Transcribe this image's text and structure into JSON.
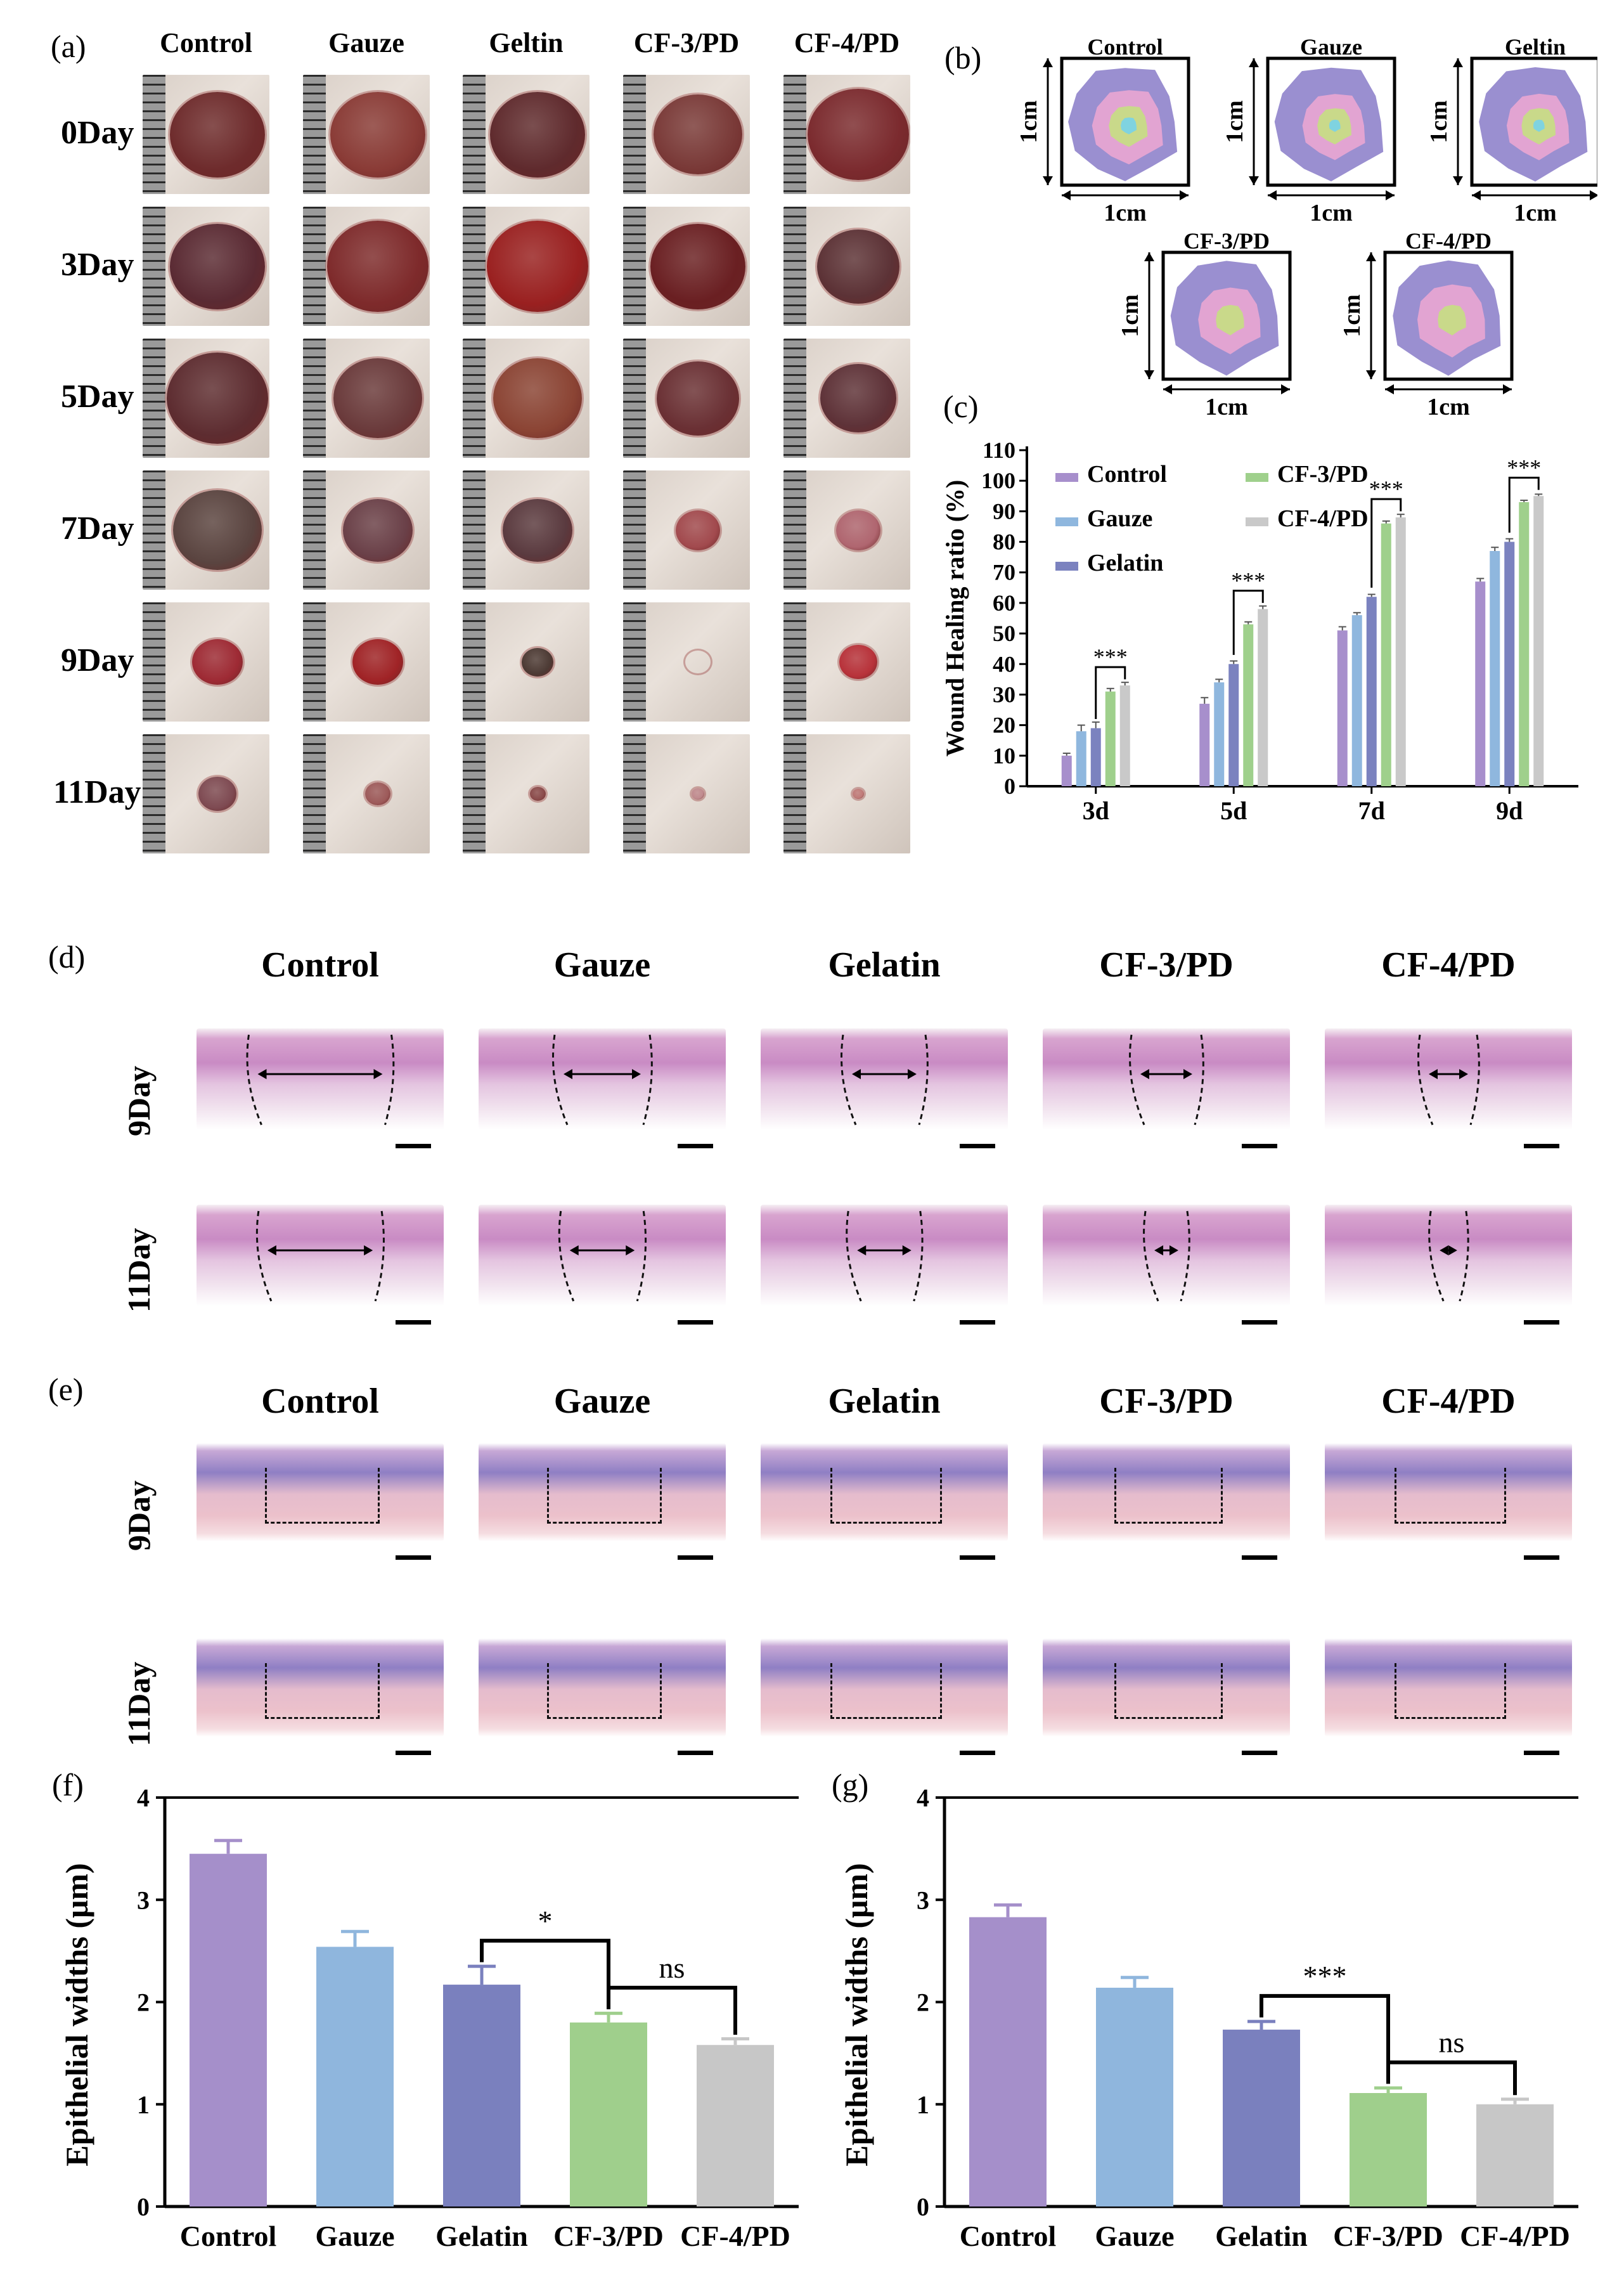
{
  "panel_a": {
    "letter": "(a)",
    "columns": [
      "Control",
      "Gauze",
      "Geltin",
      "CF-3/PD",
      "CF-4/PD"
    ],
    "rows": [
      "0Day",
      "3Day",
      "5Day",
      "7Day",
      "9Day",
      "11Day"
    ]
  },
  "panel_b": {
    "letter": "(b)",
    "maps": [
      "Control",
      "Gauze",
      "Geltin",
      "CF-3/PD",
      "CF-4/PD"
    ],
    "scale_label": "1cm",
    "colors": [
      "#9a8fd0",
      "#e2a4d2",
      "#c9d98a",
      "#7fd3e0"
    ]
  },
  "panel_d": {
    "letter": "(d)",
    "columns": [
      "Control",
      "Gauze",
      "Gelatin",
      "CF-3/PD",
      "CF-4/PD"
    ],
    "rows": [
      "9Day",
      "11Day"
    ]
  },
  "panel_e": {
    "letter": "(e)",
    "columns": [
      "Control",
      "Gauze",
      "Gelatin",
      "CF-3/PD",
      "CF-4/PD"
    ],
    "rows": [
      "9Day",
      "11Day"
    ]
  },
  "chart_data": [
    {
      "panel": "(c)",
      "type": "bar",
      "ylabel": "Wound Healing ratio (%)",
      "categories": [
        "3d",
        "5d",
        "7d",
        "9d"
      ],
      "ylim": [
        0,
        110
      ],
      "yticks": [
        0,
        10,
        20,
        30,
        40,
        50,
        60,
        70,
        80,
        90,
        100,
        110
      ],
      "legend_placement": "top-left",
      "series": [
        {
          "name": "Control",
          "color": "#a78fcc",
          "values": [
            10,
            27,
            51,
            67
          ],
          "errors": [
            0.8,
            2,
            1.2,
            1
          ]
        },
        {
          "name": "Gauze",
          "color": "#8fb7de",
          "values": [
            18,
            34,
            56,
            77
          ],
          "errors": [
            2,
            1,
            0.8,
            1.2
          ]
        },
        {
          "name": "Gelatin",
          "color": "#7b82bf",
          "values": [
            19,
            40,
            62,
            80
          ],
          "errors": [
            2,
            1,
            0.8,
            1
          ]
        },
        {
          "name": "CF-3/PD",
          "color": "#9fd08c",
          "values": [
            31,
            53,
            86,
            93
          ],
          "errors": [
            1,
            0.8,
            0.8,
            0.6
          ]
        },
        {
          "name": "CF-4/PD",
          "color": "#c9c9c9",
          "values": [
            33,
            58,
            88,
            95
          ],
          "errors": [
            1,
            1,
            1,
            0.6
          ]
        }
      ],
      "annotations": [
        {
          "category": "3d",
          "text": "***"
        },
        {
          "category": "5d",
          "text": "***"
        },
        {
          "category": "7d",
          "text": "***"
        },
        {
          "category": "9d",
          "text": "***"
        }
      ]
    },
    {
      "panel": "(f)",
      "type": "bar",
      "ylabel": "Epithelial widths (μm)",
      "categories": [
        "Control",
        "Gauze",
        "Gelatin",
        "CF-3/PD",
        "CF-4/PD"
      ],
      "values": [
        3.45,
        2.54,
        2.17,
        1.8,
        1.58
      ],
      "errors": [
        0.13,
        0.15,
        0.18,
        0.09,
        0.06
      ],
      "colors": [
        "#a58fca",
        "#8fb6dd",
        "#7a80be",
        "#9fcf8c",
        "#c7c7c7"
      ],
      "ylim": [
        0,
        4
      ],
      "yticks": [
        0,
        1,
        2,
        3,
        4
      ],
      "annotations": [
        {
          "from": "Gelatin",
          "to": "CF-3/PD",
          "text": "*"
        },
        {
          "from": "CF-3/PD",
          "to": "CF-4/PD",
          "text": "ns"
        }
      ]
    },
    {
      "panel": "(g)",
      "type": "bar",
      "ylabel": "Epithelial widths (μm)",
      "categories": [
        "Control",
        "Gauze",
        "Gelatin",
        "CF-3/PD",
        "CF-4/PD"
      ],
      "values": [
        2.83,
        2.14,
        1.73,
        1.11,
        1.0
      ],
      "errors": [
        0.12,
        0.1,
        0.08,
        0.05,
        0.05
      ],
      "colors": [
        "#a58fca",
        "#8fb6dd",
        "#7a80be",
        "#9fcf8c",
        "#c7c7c7"
      ],
      "ylim": [
        0,
        4
      ],
      "yticks": [
        0,
        1,
        2,
        3,
        4
      ],
      "annotations": [
        {
          "from": "Gelatin",
          "to": "CF-3/PD",
          "text": "***"
        },
        {
          "from": "CF-3/PD",
          "to": "CF-4/PD",
          "text": "ns"
        }
      ]
    }
  ]
}
